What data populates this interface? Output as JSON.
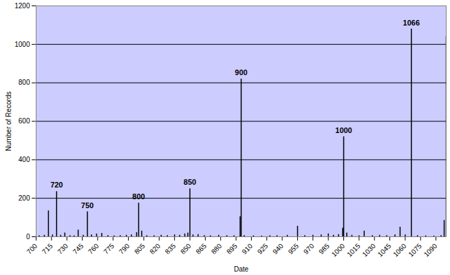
{
  "chart_data": {
    "type": "bar",
    "x_label": "Date",
    "y_label": "Number of Records",
    "x": [
      703,
      708,
      712,
      716,
      720,
      724,
      728,
      733,
      737,
      741,
      746,
      750,
      754,
      759,
      764,
      770,
      776,
      782,
      788,
      793,
      798,
      800,
      803,
      808,
      815,
      822,
      828,
      835,
      840,
      845,
      848,
      850,
      853,
      858,
      864,
      870,
      878,
      886,
      893,
      899,
      900,
      903,
      912,
      920,
      928,
      935,
      945,
      955,
      962,
      970,
      978,
      985,
      990,
      995,
      999,
      1000,
      1003,
      1008,
      1015,
      1020,
      1028,
      1035,
      1042,
      1050,
      1055,
      1060,
      1066,
      1072,
      1080,
      1088,
      1095,
      1098,
      1100
    ],
    "values": [
      5,
      8,
      135,
      10,
      235,
      8,
      20,
      6,
      5,
      35,
      8,
      130,
      10,
      15,
      18,
      6,
      5,
      6,
      8,
      10,
      22,
      175,
      30,
      6,
      5,
      8,
      6,
      10,
      8,
      15,
      20,
      250,
      10,
      12,
      6,
      5,
      8,
      6,
      5,
      105,
      820,
      6,
      5,
      4,
      5,
      6,
      8,
      55,
      6,
      8,
      10,
      15,
      8,
      12,
      45,
      520,
      20,
      8,
      5,
      30,
      6,
      8,
      6,
      10,
      50,
      10,
      1080,
      6,
      5,
      4,
      6,
      85,
      1040
    ],
    "color": "#000000",
    "xlim": [
      700,
      1100
    ],
    "xticks": [
      700,
      715,
      730,
      745,
      760,
      775,
      790,
      805,
      820,
      835,
      850,
      865,
      880,
      895,
      910,
      925,
      940,
      955,
      970,
      985,
      1000,
      1015,
      1030,
      1045,
      1060,
      1075,
      1090
    ],
    "ylim": [
      0,
      1200
    ],
    "yticks": [
      0,
      200,
      400,
      600,
      800,
      1000,
      1200
    ],
    "grid": true,
    "annotations": [
      {
        "x": 720,
        "y": 235,
        "text": "720"
      },
      {
        "x": 750,
        "y": 130,
        "text": "750"
      },
      {
        "x": 800,
        "y": 175,
        "text": "800"
      },
      {
        "x": 850,
        "y": 250,
        "text": "850"
      },
      {
        "x": 900,
        "y": 820,
        "text": "900"
      },
      {
        "x": 1000,
        "y": 520,
        "text": "1000"
      },
      {
        "x": 1066,
        "y": 1080,
        "text": "1066"
      }
    ]
  }
}
